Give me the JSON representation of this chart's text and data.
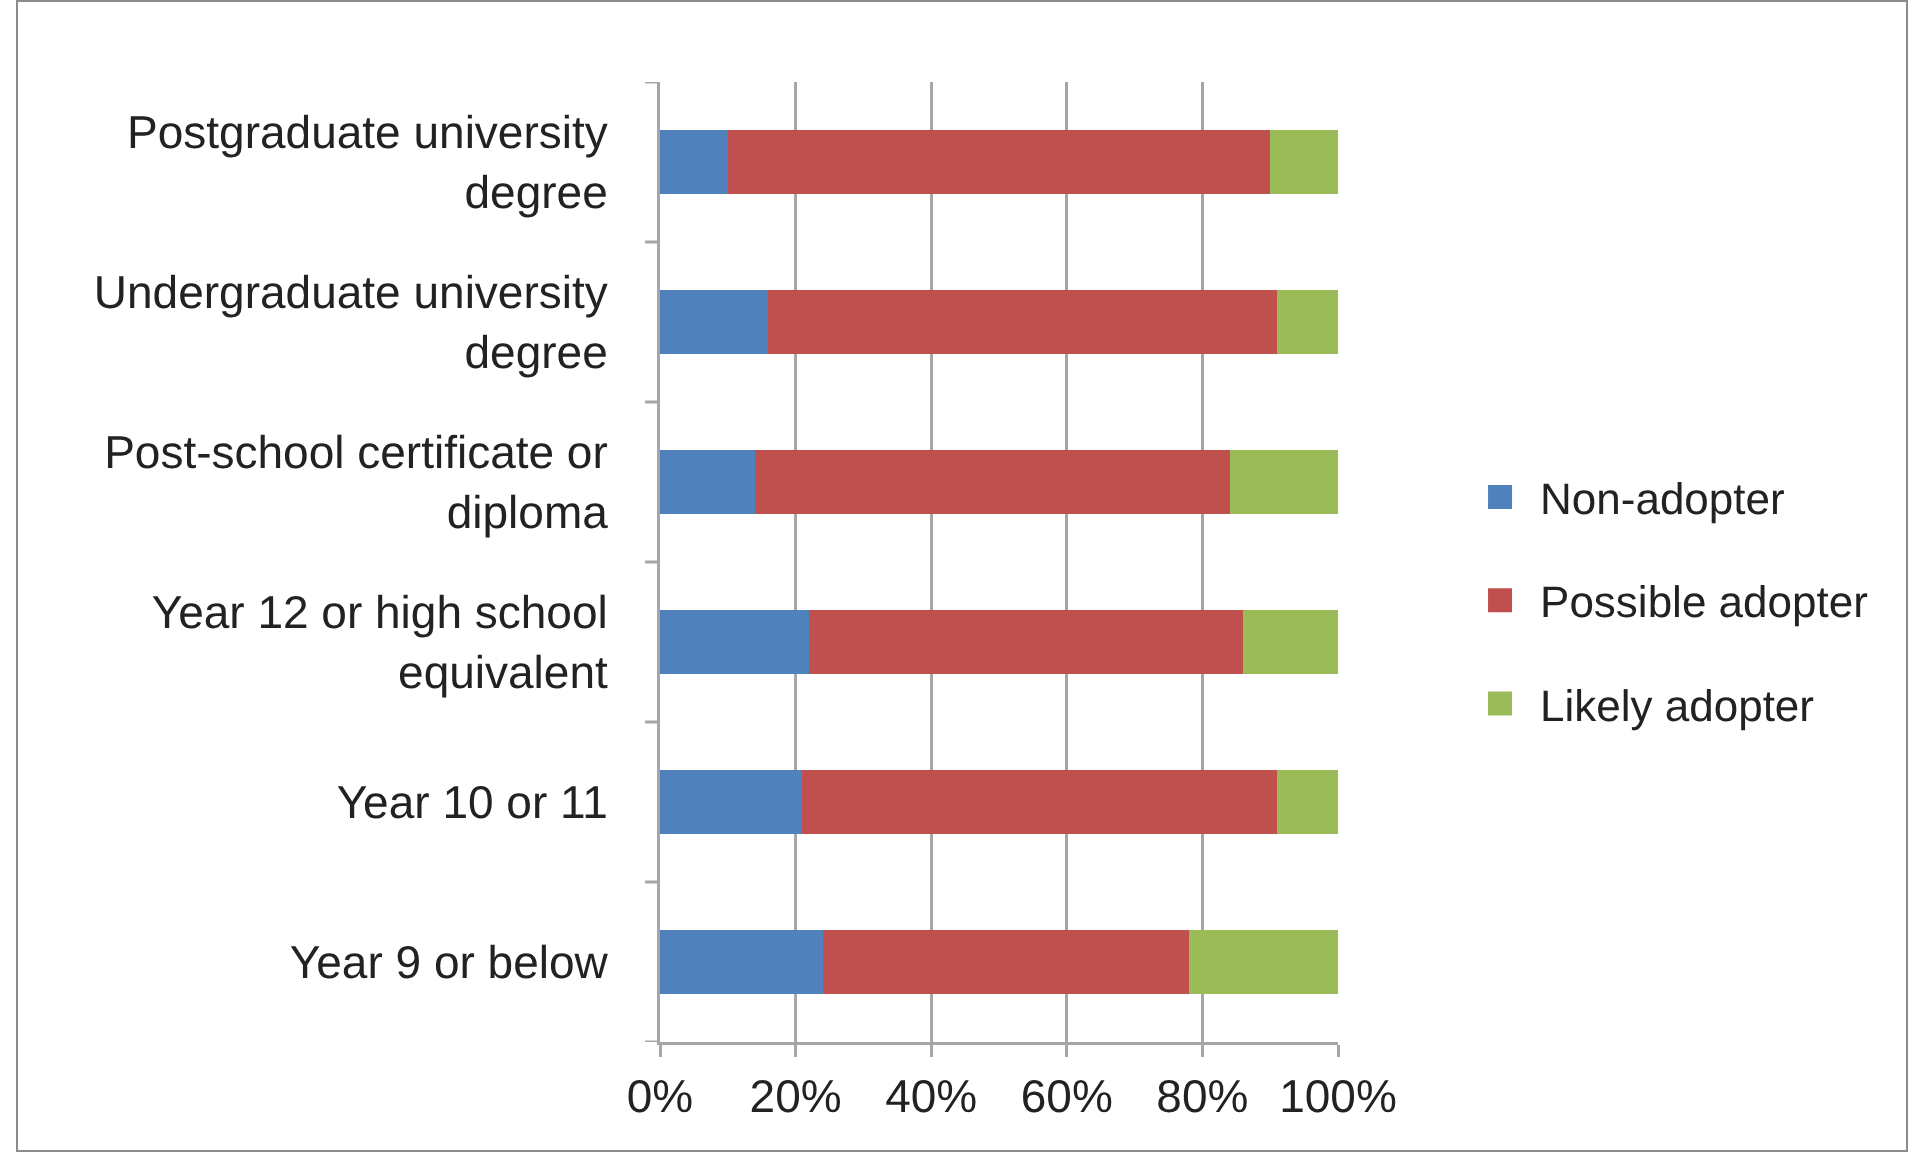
{
  "chart_data": {
    "type": "bar",
    "orientation": "horizontal",
    "stacked": true,
    "categories": [
      "Postgraduate university degree",
      "Undergraduate university degree",
      "Post-school certificate or diploma",
      "Year 12 or high school equivalent",
      "Year 10 or 11",
      "Year 9 or below"
    ],
    "series": [
      {
        "name": "Non-adopter",
        "color": "#4f81bd",
        "values": [
          10,
          16,
          14,
          22,
          21,
          24
        ]
      },
      {
        "name": "Possible adopter",
        "color": "#c0504d",
        "values": [
          80,
          75,
          70,
          64,
          70,
          54
        ]
      },
      {
        "name": "Likely adopter",
        "color": "#9bbb59",
        "values": [
          10,
          9,
          16,
          14,
          9,
          22
        ]
      }
    ],
    "xlim": [
      0,
      100
    ],
    "xticks": [
      {
        "value": 0,
        "label": "0%"
      },
      {
        "value": 20,
        "label": "20%"
      },
      {
        "value": 40,
        "label": "40%"
      },
      {
        "value": 60,
        "label": "60%"
      },
      {
        "value": 80,
        "label": "80%"
      },
      {
        "value": 100,
        "label": "100%"
      }
    ],
    "grid": "x",
    "legend": "right"
  }
}
